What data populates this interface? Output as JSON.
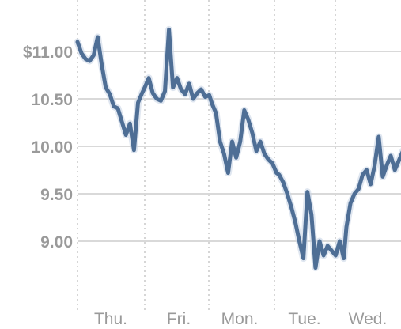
{
  "chart_data": {
    "type": "line",
    "xlabel": "",
    "ylabel": "",
    "ylim": [
      8.55,
      11.5
    ],
    "grid": true,
    "x_ticks": [
      "Thu.",
      "Fri.",
      "Mon.",
      "Tue.",
      "Wed."
    ],
    "y_ticks": [
      {
        "value": 11.0,
        "label": "$11.00"
      },
      {
        "value": 10.5,
        "label": "10.50"
      },
      {
        "value": 10.0,
        "label": "10.00"
      },
      {
        "value": 9.5,
        "label": "9.50"
      },
      {
        "value": 9.0,
        "label": "9.00"
      }
    ],
    "line_color": "#4e6e95",
    "series": [
      {
        "name": "",
        "x": [
          0.0,
          0.06,
          0.12,
          0.18,
          0.24,
          0.3,
          0.36,
          0.42,
          0.48,
          0.54,
          0.6,
          0.66,
          0.72,
          0.78,
          0.84,
          0.9,
          0.96,
          1.0,
          1.06,
          1.12,
          1.18,
          1.24,
          1.3,
          1.36,
          1.42,
          1.48,
          1.54,
          1.6,
          1.66,
          1.72,
          1.78,
          1.84,
          1.9,
          1.96,
          2.0,
          2.06,
          2.12,
          2.18,
          2.24,
          2.3,
          2.36,
          2.42,
          2.48,
          2.54,
          2.6,
          2.66,
          2.72,
          2.78,
          2.84,
          2.9,
          2.96,
          3.0,
          3.06,
          3.12,
          3.18,
          3.24,
          3.3,
          3.36,
          3.42,
          3.48,
          3.54,
          3.6,
          3.66,
          3.72,
          3.78,
          3.84,
          3.9,
          3.96,
          4.0,
          4.06,
          4.12,
          4.18,
          4.24,
          4.3,
          4.36,
          4.42,
          4.48,
          4.54,
          4.6,
          4.66,
          4.72,
          4.78,
          4.84,
          4.9,
          4.96
        ],
        "y": [
          11.1,
          10.98,
          10.92,
          10.9,
          10.96,
          11.15,
          10.86,
          10.62,
          10.55,
          10.42,
          10.4,
          10.26,
          10.12,
          10.24,
          9.96,
          10.46,
          10.56,
          10.62,
          10.72,
          10.56,
          10.5,
          10.48,
          10.58,
          11.23,
          10.62,
          10.72,
          10.6,
          10.55,
          10.66,
          10.5,
          10.56,
          10.6,
          10.52,
          10.54,
          10.45,
          10.35,
          10.05,
          9.92,
          9.72,
          10.05,
          9.88,
          10.05,
          10.38,
          10.28,
          10.14,
          9.95,
          10.05,
          9.92,
          9.86,
          9.82,
          9.72,
          9.7,
          9.62,
          9.5,
          9.36,
          9.2,
          9.0,
          8.82,
          9.52,
          9.28,
          8.72,
          9.0,
          8.85,
          8.95,
          8.9,
          8.85,
          9.0,
          8.82,
          9.15,
          9.4,
          9.5,
          9.55,
          9.7,
          9.75,
          9.6,
          9.8,
          10.1,
          9.68,
          9.8,
          9.9,
          9.75,
          9.85,
          9.95,
          9.82,
          9.9
        ]
      }
    ]
  }
}
